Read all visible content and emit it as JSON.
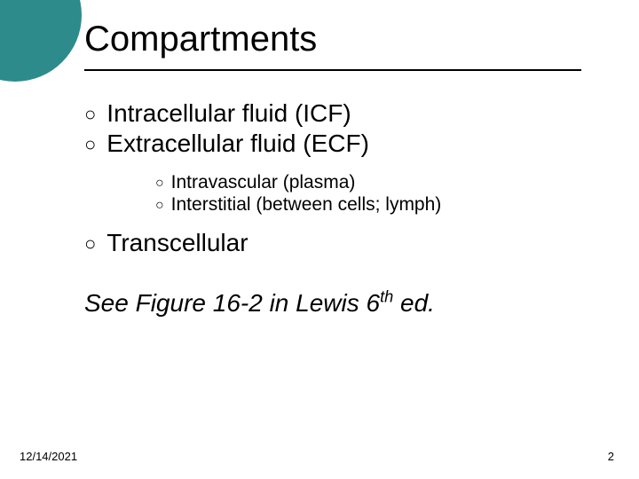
{
  "accent_color": "#2d8b8b",
  "background_color": "#ffffff",
  "text_color": "#000000",
  "title": "Compartments",
  "title_fontsize": 40,
  "body_fontsize_l1": 28,
  "body_fontsize_l2": 21,
  "bullets": {
    "icf": "Intracellular fluid (ICF)",
    "ecf": "Extracellular fluid (ECF)",
    "intravascular": "Intravascular (plasma)",
    "interstitial": "Interstitial (between cells; lymph)",
    "transcellular": "Transcellular"
  },
  "see_figure_prefix": "See Figure 16-2 in Lewis 6",
  "see_figure_sup": "th",
  "see_figure_suffix": " ed.",
  "footer": {
    "date": "12/14/2021",
    "page": "2"
  }
}
